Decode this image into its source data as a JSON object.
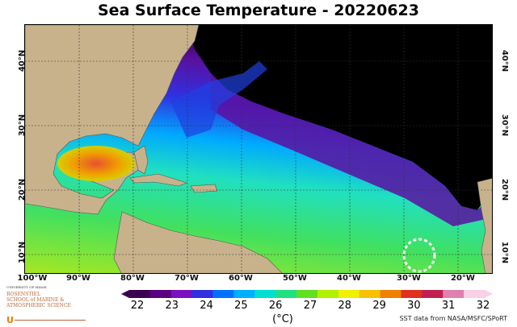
{
  "title": "Sea Surface Temperature - 20220623",
  "map": {
    "lat_labels": [
      {
        "label": "40°N",
        "value": 40
      },
      {
        "label": "30°N",
        "value": 30
      },
      {
        "label": "20°N",
        "value": 20
      },
      {
        "label": "10°N",
        "value": 10
      }
    ],
    "lon_labels": [
      {
        "label": "100°W",
        "value": -100
      },
      {
        "label": "90°W",
        "value": -90
      },
      {
        "label": "80°W",
        "value": -80
      },
      {
        "label": "70°W",
        "value": -70
      },
      {
        "label": "60°W",
        "value": -60
      },
      {
        "label": "50°W",
        "value": -50
      },
      {
        "label": "40°W",
        "value": -40
      },
      {
        "label": "30°W",
        "value": -30
      },
      {
        "label": "20°W",
        "value": -20
      }
    ],
    "colors": {
      "land": "#c8b28c",
      "no_data": "#000000",
      "grid": "#333333",
      "highlight_circle": "#ffffff"
    }
  },
  "colorbar": {
    "ticks": [
      "22",
      "23",
      "24",
      "25",
      "26",
      "27",
      "28",
      "29",
      "30",
      "31",
      "32"
    ],
    "unit": "(°C)",
    "colors": [
      "#3a0050",
      "#5a0080",
      "#7a10c0",
      "#3030e0",
      "#0070ff",
      "#00b0ff",
      "#00e0d0",
      "#20e080",
      "#60e020",
      "#b0f000",
      "#f0f000",
      "#f8c000",
      "#f08000",
      "#e03020",
      "#c02050",
      "#e080b0",
      "#f8d0e8"
    ]
  },
  "logo": {
    "university": "UNIVERSITY OF MIAMI",
    "school_lines": [
      "ROSENSTIEL",
      "SCHOOL of MARINE &",
      "ATMOSPHERIC SCIENCE"
    ]
  },
  "credit": "SST data from NASA/MSFC/SPoRT"
}
